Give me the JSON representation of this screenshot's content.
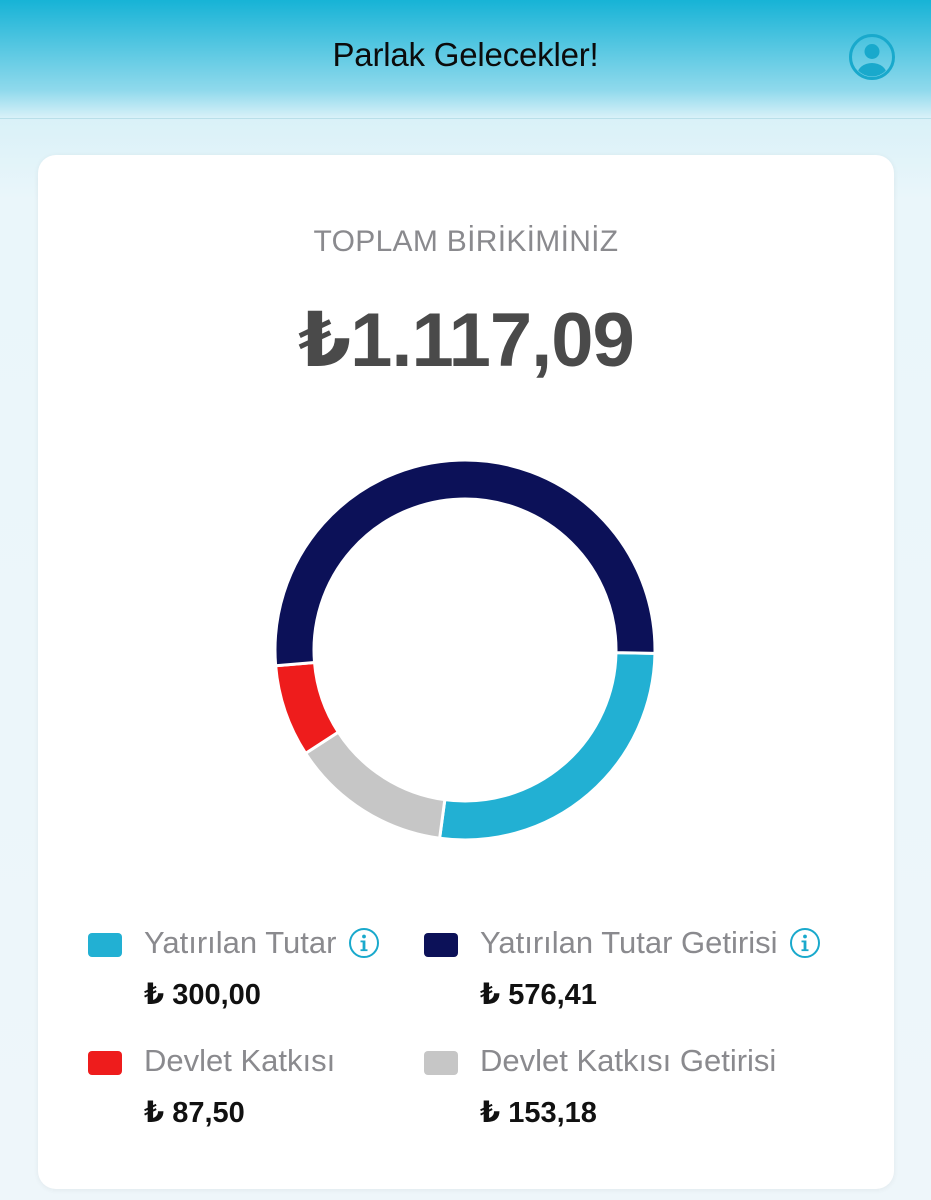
{
  "header": {
    "title": "Parlak Gelecekler!",
    "profile_icon": "user-circle-icon"
  },
  "summary": {
    "label": "TOPLAM BİRİKİMİNİZ",
    "total": "₺1.117,09"
  },
  "colors": {
    "accent": "#17b3d6",
    "invested": "#22b0d3",
    "invested_return": "#0c1158",
    "state_contribution": "#ee1c1c",
    "state_contribution_return": "#c6c6c6"
  },
  "chart_data": {
    "type": "pie",
    "categories": [
      "Yatırılan Tutar",
      "Yatırılan Tutar Getirisi",
      "Devlet Katkısı",
      "Devlet Katkısı Getirisi"
    ],
    "values": [
      300.0,
      576.41,
      87.5,
      153.18
    ],
    "colors": [
      "#22b0d3",
      "#0c1158",
      "#ee1c1c",
      "#c6c6c6"
    ],
    "legend_position": "bottom"
  },
  "legend": [
    {
      "label": "Yatırılan Tutar",
      "value": "₺ 300,00",
      "color": "#22b0d3",
      "has_info": true
    },
    {
      "label": "Yatırılan Tutar Getirisi",
      "value": "₺ 576,41",
      "color": "#0c1158",
      "has_info": true
    },
    {
      "label": "Devlet Katkısı",
      "value": "₺ 87,50",
      "color": "#ee1c1c",
      "has_info": false
    },
    {
      "label": "Devlet Katkısı Getirisi",
      "value": "₺ 153,18",
      "color": "#c6c6c6",
      "has_info": false
    }
  ]
}
